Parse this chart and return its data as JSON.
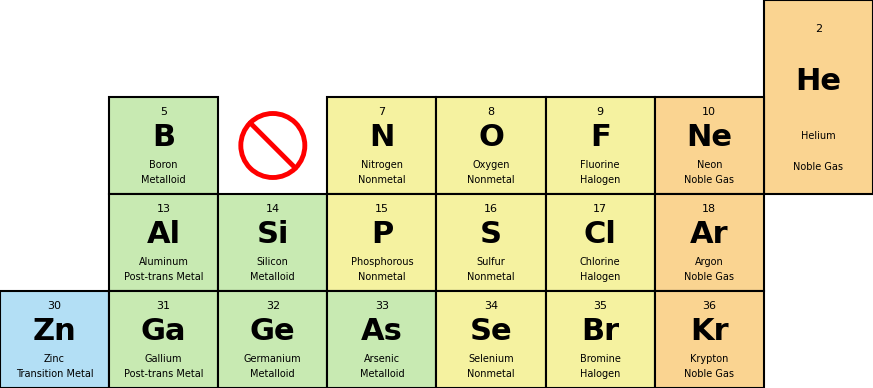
{
  "fig_w": 8.73,
  "fig_h": 3.88,
  "dpi": 100,
  "background": "#ffffff",
  "cell_lw": 1.5,
  "elements": [
    {
      "symbol": "He",
      "name": "Helium",
      "category": "Noble Gas",
      "number": 2,
      "col": 7,
      "row": 0,
      "rowspan": 2
    },
    {
      "symbol": "B",
      "name": "Boron",
      "category": "Metalloid",
      "number": 5,
      "col": 1,
      "row": 1,
      "rowspan": 1
    },
    {
      "symbol": "N",
      "name": "Nitrogen",
      "category": "Nonmetal",
      "number": 7,
      "col": 3,
      "row": 1,
      "rowspan": 1
    },
    {
      "symbol": "O",
      "name": "Oxygen",
      "category": "Nonmetal",
      "number": 8,
      "col": 4,
      "row": 1,
      "rowspan": 1
    },
    {
      "symbol": "F",
      "name": "Fluorine",
      "category": "Halogen",
      "number": 9,
      "col": 5,
      "row": 1,
      "rowspan": 1
    },
    {
      "symbol": "Ne",
      "name": "Neon",
      "category": "Noble Gas",
      "number": 10,
      "col": 6,
      "row": 1,
      "rowspan": 1
    },
    {
      "symbol": "Al",
      "name": "Aluminum",
      "category": "Post-trans Metal",
      "number": 13,
      "col": 1,
      "row": 2,
      "rowspan": 1
    },
    {
      "symbol": "Si",
      "name": "Silicon",
      "category": "Metalloid",
      "number": 14,
      "col": 2,
      "row": 2,
      "rowspan": 1
    },
    {
      "symbol": "P",
      "name": "Phosphorous",
      "category": "Nonmetal",
      "number": 15,
      "col": 3,
      "row": 2,
      "rowspan": 1
    },
    {
      "symbol": "S",
      "name": "Sulfur",
      "category": "Nonmetal",
      "number": 16,
      "col": 4,
      "row": 2,
      "rowspan": 1
    },
    {
      "symbol": "Cl",
      "name": "Chlorine",
      "category": "Halogen",
      "number": 17,
      "col": 5,
      "row": 2,
      "rowspan": 1
    },
    {
      "symbol": "Ar",
      "name": "Argon",
      "category": "Noble Gas",
      "number": 18,
      "col": 6,
      "row": 2,
      "rowspan": 1
    },
    {
      "symbol": "Zn",
      "name": "Zinc",
      "category": "Transition Metal",
      "number": 30,
      "col": 0,
      "row": 3,
      "rowspan": 1
    },
    {
      "symbol": "Ga",
      "name": "Gallium",
      "category": "Post-trans Metal",
      "number": 31,
      "col": 1,
      "row": 3,
      "rowspan": 1
    },
    {
      "symbol": "Ge",
      "name": "Germanium",
      "category": "Metalloid",
      "number": 32,
      "col": 2,
      "row": 3,
      "rowspan": 1
    },
    {
      "symbol": "As",
      "name": "Arsenic",
      "category": "Metalloid",
      "number": 33,
      "col": 3,
      "row": 3,
      "rowspan": 1
    },
    {
      "symbol": "Se",
      "name": "Selenium",
      "category": "Nonmetal",
      "number": 34,
      "col": 4,
      "row": 3,
      "rowspan": 1
    },
    {
      "symbol": "Br",
      "name": "Bromine",
      "category": "Halogen",
      "number": 35,
      "col": 5,
      "row": 3,
      "rowspan": 1
    },
    {
      "symbol": "Kr",
      "name": "Krypton",
      "category": "Noble Gas",
      "number": 36,
      "col": 6,
      "row": 3,
      "rowspan": 1
    }
  ],
  "no_symbol": {
    "col": 2,
    "row": 1
  },
  "category_colors": {
    "Noble Gas": "#fad491",
    "Metalloid": "#c8eab2",
    "Nonmetal": "#f5f2a0",
    "Halogen": "#f5f2a0",
    "Post-trans Metal": "#c8eab2",
    "Transition Metal": "#b3dff5"
  },
  "num_cols": 8,
  "num_rows": 4,
  "number_fontsize": 8,
  "symbol_fontsize": 22,
  "name_fontsize": 7,
  "cat_fontsize": 7
}
